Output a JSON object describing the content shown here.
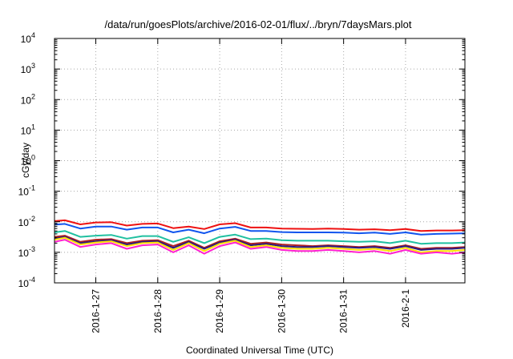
{
  "chart_data": {
    "type": "line",
    "title": "/data/run/goesPlots/archive/2016-02-01/flux/../bryn/7daysMars.plot",
    "xlabel": "Coordinated Universal Time (UTC)",
    "ylabel": "cGy/day",
    "yscale": "log",
    "ylim": [
      0.0001,
      10000
    ],
    "xlim": [
      "2016-01-26T08:00",
      "2016-02-01T23:00"
    ],
    "y_tick_labels": [
      {
        "base": "10",
        "exp": "-4"
      },
      {
        "base": "10",
        "exp": "-3"
      },
      {
        "base": "10",
        "exp": "-2"
      },
      {
        "base": "10",
        "exp": "-1"
      },
      {
        "base": "10",
        "exp": "0"
      },
      {
        "base": "10",
        "exp": "1"
      },
      {
        "base": "10",
        "exp": "2"
      },
      {
        "base": "10",
        "exp": "3"
      },
      {
        "base": "10",
        "exp": "4"
      }
    ],
    "x_ticks": [
      "2016-1-27",
      "2016-1-28",
      "2016-1-29",
      "2016-1-30",
      "2016-1-31",
      "2016-2-1"
    ],
    "grid": true,
    "legend": "none",
    "x": [
      "2016-01-26T08:00",
      "2016-01-26T12:00",
      "2016-01-26T18:00",
      "2016-01-27T00:00",
      "2016-01-27T06:00",
      "2016-01-27T12:00",
      "2016-01-27T18:00",
      "2016-01-28T00:00",
      "2016-01-28T06:00",
      "2016-01-28T12:00",
      "2016-01-28T18:00",
      "2016-01-29T00:00",
      "2016-01-29T06:00",
      "2016-01-29T12:00",
      "2016-01-29T18:00",
      "2016-01-30T00:00",
      "2016-01-30T06:00",
      "2016-01-30T12:00",
      "2016-01-30T18:00",
      "2016-01-31T00:00",
      "2016-01-31T06:00",
      "2016-01-31T12:00",
      "2016-01-31T18:00",
      "2016-02-01T00:00",
      "2016-02-01T06:00",
      "2016-02-01T12:00",
      "2016-02-01T18:00",
      "2016-02-01T23:00"
    ],
    "series": [
      {
        "color": "#ee1111",
        "values": [
          0.0105,
          0.0112,
          0.0082,
          0.0095,
          0.0097,
          0.0075,
          0.0085,
          0.0088,
          0.0062,
          0.007,
          0.0058,
          0.0082,
          0.009,
          0.0065,
          0.0065,
          0.006,
          0.0059,
          0.0058,
          0.006,
          0.0058,
          0.0055,
          0.0057,
          0.0053,
          0.0058,
          0.005,
          0.0052,
          0.0052,
          0.0053
        ]
      },
      {
        "color": "#1155ee",
        "values": [
          0.008,
          0.0085,
          0.006,
          0.007,
          0.007,
          0.0055,
          0.0065,
          0.0065,
          0.0045,
          0.0055,
          0.0042,
          0.006,
          0.0068,
          0.005,
          0.005,
          0.0046,
          0.0045,
          0.0045,
          0.0045,
          0.0044,
          0.0042,
          0.0044,
          0.004,
          0.0045,
          0.0038,
          0.004,
          0.0041,
          0.0042
        ]
      },
      {
        "color": "#20c0a0",
        "values": [
          0.0045,
          0.005,
          0.0032,
          0.0035,
          0.0037,
          0.0028,
          0.0034,
          0.0034,
          0.0022,
          0.0031,
          0.002,
          0.0032,
          0.0038,
          0.0027,
          0.0028,
          0.0025,
          0.0024,
          0.0024,
          0.0024,
          0.0023,
          0.0022,
          0.0023,
          0.002,
          0.0024,
          0.0019,
          0.002,
          0.002,
          0.0021
        ]
      },
      {
        "color": "#b02020",
        "values": [
          0.0032,
          0.0035,
          0.0022,
          0.0026,
          0.0027,
          0.002,
          0.0024,
          0.0025,
          0.0016,
          0.0024,
          0.0014,
          0.0023,
          0.0028,
          0.0019,
          0.0021,
          0.0018,
          0.0017,
          0.0016,
          0.0017,
          0.0016,
          0.0015,
          0.0016,
          0.0014,
          0.0017,
          0.0013,
          0.0014,
          0.0014,
          0.0015
        ]
      },
      {
        "color": "#2a1a80",
        "values": [
          0.0028,
          0.0032,
          0.002,
          0.0023,
          0.0025,
          0.0018,
          0.0022,
          0.0023,
          0.0014,
          0.0022,
          0.0013,
          0.0021,
          0.0026,
          0.0017,
          0.0019,
          0.0016,
          0.0015,
          0.0015,
          0.0016,
          0.0015,
          0.0014,
          0.0015,
          0.0013,
          0.0016,
          0.0012,
          0.0013,
          0.0013,
          0.0014
        ]
      },
      {
        "color": "#ffe000",
        "values": [
          0.0026,
          0.003,
          0.0018,
          0.0021,
          0.0023,
          0.0016,
          0.002,
          0.0021,
          0.0012,
          0.002,
          0.0011,
          0.0019,
          0.0024,
          0.0015,
          0.0017,
          0.0014,
          0.0013,
          0.0013,
          0.0014,
          0.0013,
          0.0012,
          0.0013,
          0.0011,
          0.0014,
          0.001,
          0.0011,
          0.0011,
          0.0012
        ]
      },
      {
        "color": "#ff20d0",
        "values": [
          0.0022,
          0.0026,
          0.0015,
          0.0018,
          0.002,
          0.0013,
          0.0017,
          0.0018,
          0.001,
          0.0017,
          0.0009,
          0.0016,
          0.0021,
          0.0013,
          0.0015,
          0.0012,
          0.0011,
          0.0011,
          0.0012,
          0.0011,
          0.001,
          0.0011,
          0.0009,
          0.0012,
          0.0009,
          0.001,
          0.0009,
          0.001
        ]
      }
    ]
  }
}
